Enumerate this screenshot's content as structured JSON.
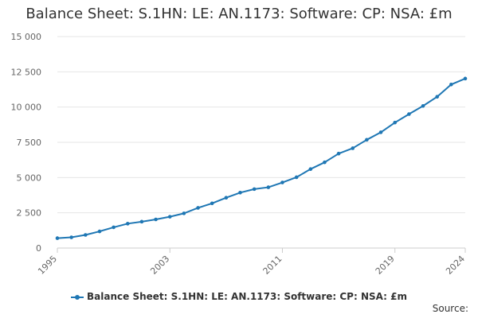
{
  "chart_data": {
    "type": "line",
    "title": "Balance Sheet: S.1HN: LE: AN.1173: Software: CP: NSA: £m",
    "x": [
      1995,
      1996,
      1997,
      1998,
      1999,
      2000,
      2001,
      2002,
      2003,
      2004,
      2005,
      2006,
      2007,
      2008,
      2009,
      2010,
      2011,
      2012,
      2013,
      2014,
      2015,
      2016,
      2017,
      2018,
      2019,
      2020,
      2021,
      2022,
      2023,
      2024
    ],
    "series": [
      {
        "name": "Balance Sheet: S.1HN: LE: AN.1173: Software: CP: NSA: £m",
        "values": [
          700,
          760,
          930,
          1180,
          1470,
          1730,
          1870,
          2030,
          2220,
          2460,
          2850,
          3170,
          3570,
          3930,
          4180,
          4310,
          4650,
          5020,
          5600,
          6080,
          6700,
          7080,
          7680,
          8210,
          8900,
          9500,
          10080,
          10730,
          11600,
          12020
        ]
      }
    ],
    "x_tick_labels": [
      "1995",
      "2003",
      "2011",
      "2019",
      "2024"
    ],
    "y_tick_labels": [
      "0",
      "2 500",
      "5 000",
      "7 500",
      "10 000",
      "12 500",
      "15 000"
    ],
    "ylim": [
      0,
      15000
    ],
    "xlim": [
      1995,
      2024
    ],
    "grid": true,
    "legend_position": "bottom",
    "line_color": "#1f77b4"
  },
  "footer": {
    "source_label": "Source:"
  }
}
